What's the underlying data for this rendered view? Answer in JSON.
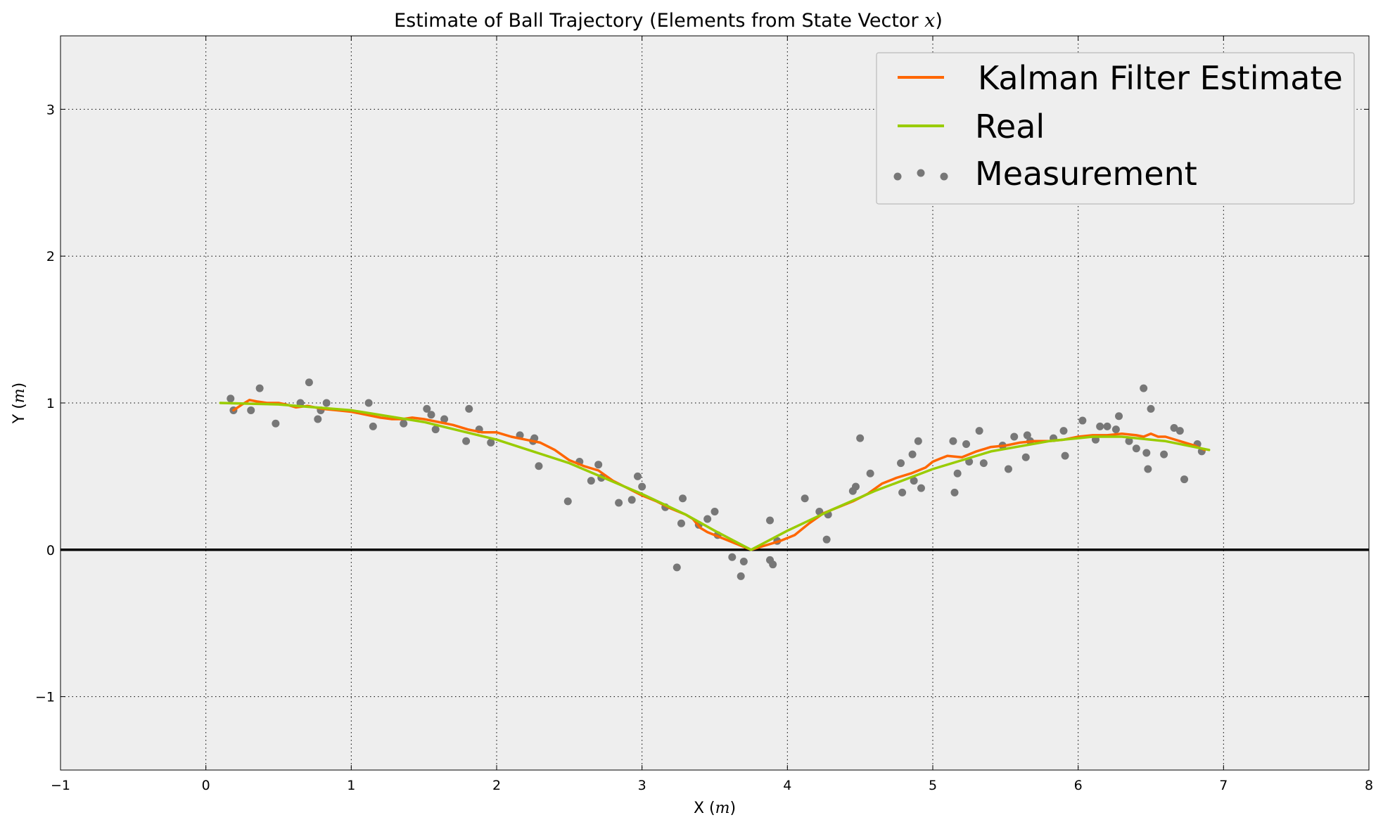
{
  "chart_data": {
    "type": "line",
    "title": "Estimate of Ball Trajectory (Elements from State Vector ",
    "title_math": "x",
    "title_close": ")",
    "xlabel": "X (",
    "xlabel_math": "m",
    "xlabel_close": ")",
    "ylabel": "Y (",
    "ylabel_math": "m",
    "ylabel_close": ")",
    "xlim": [
      -1,
      8
    ],
    "ylim": [
      -1.5,
      3.5
    ],
    "xticks": [
      -1,
      0,
      1,
      2,
      3,
      4,
      5,
      6,
      7,
      8
    ],
    "yticks": [
      -1,
      0,
      1,
      2,
      3
    ],
    "xtick_labels": [
      "−1",
      "0",
      "1",
      "2",
      "3",
      "4",
      "5",
      "6",
      "7",
      "8"
    ],
    "ytick_labels": [
      "−1",
      "0",
      "1",
      "2",
      "3"
    ],
    "grid": true,
    "legend_position": "top-right",
    "ground_line": {
      "y": 0,
      "color": "#000000"
    },
    "colors": {
      "background": "#eeeeee",
      "kalman": "#ff6600",
      "real": "#99cc00",
      "measurement": "#777777"
    },
    "series": [
      {
        "name": "Kalman Filter Estimate",
        "kind": "line",
        "x": [
          0.19,
          0.25,
          0.3,
          0.35,
          0.42,
          0.5,
          0.55,
          0.62,
          0.7,
          0.8,
          0.9,
          1.0,
          1.1,
          1.2,
          1.28,
          1.35,
          1.42,
          1.5,
          1.6,
          1.7,
          1.8,
          1.9,
          2.0,
          2.1,
          2.2,
          2.3,
          2.4,
          2.5,
          2.6,
          2.7,
          2.8,
          2.9,
          3.0,
          3.1,
          3.2,
          3.3,
          3.35,
          3.4,
          3.45,
          3.5,
          3.6,
          3.7,
          3.75,
          3.85,
          3.95,
          4.05,
          4.15,
          4.25,
          4.35,
          4.45,
          4.55,
          4.65,
          4.75,
          4.85,
          4.95,
          5.0,
          5.05,
          5.1,
          5.2,
          5.3,
          5.4,
          5.5,
          5.6,
          5.7,
          5.8,
          5.9,
          6.0,
          6.1,
          6.2,
          6.3,
          6.4,
          6.45,
          6.5,
          6.55,
          6.6,
          6.7,
          6.8,
          6.87
        ],
        "y": [
          0.95,
          0.99,
          1.02,
          1.01,
          1.0,
          1.0,
          0.99,
          0.97,
          0.98,
          0.96,
          0.95,
          0.94,
          0.92,
          0.9,
          0.89,
          0.89,
          0.9,
          0.89,
          0.87,
          0.85,
          0.82,
          0.8,
          0.8,
          0.77,
          0.75,
          0.73,
          0.68,
          0.61,
          0.57,
          0.54,
          0.47,
          0.42,
          0.37,
          0.33,
          0.28,
          0.24,
          0.21,
          0.15,
          0.12,
          0.1,
          0.06,
          0.02,
          0.0,
          0.03,
          0.06,
          0.1,
          0.18,
          0.25,
          0.29,
          0.33,
          0.38,
          0.45,
          0.49,
          0.52,
          0.56,
          0.6,
          0.62,
          0.64,
          0.63,
          0.67,
          0.7,
          0.71,
          0.73,
          0.74,
          0.74,
          0.75,
          0.77,
          0.78,
          0.78,
          0.79,
          0.78,
          0.77,
          0.79,
          0.77,
          0.77,
          0.74,
          0.71,
          0.68
        ]
      },
      {
        "name": "Real",
        "kind": "line",
        "x": [
          0.1,
          0.5,
          1.0,
          1.5,
          2.0,
          2.5,
          3.0,
          3.3,
          3.5,
          3.75,
          4.0,
          4.3,
          4.6,
          5.0,
          5.4,
          5.8,
          6.1,
          6.3,
          6.6,
          6.9
        ],
        "y": [
          1.0,
          0.99,
          0.95,
          0.87,
          0.75,
          0.59,
          0.38,
          0.24,
          0.13,
          0.0,
          0.13,
          0.27,
          0.4,
          0.55,
          0.67,
          0.74,
          0.77,
          0.77,
          0.74,
          0.68
        ]
      },
      {
        "name": "Measurement",
        "kind": "scatter",
        "x": [
          0.17,
          0.19,
          0.31,
          0.37,
          0.48,
          0.65,
          0.71,
          0.77,
          0.79,
          0.83,
          1.12,
          1.15,
          1.36,
          1.52,
          1.55,
          1.58,
          1.64,
          1.79,
          1.81,
          1.88,
          1.96,
          2.16,
          2.25,
          2.26,
          2.29,
          2.49,
          2.57,
          2.65,
          2.7,
          2.72,
          2.84,
          2.93,
          2.97,
          3.0,
          3.16,
          3.24,
          3.27,
          3.28,
          3.39,
          3.45,
          3.5,
          3.52,
          3.62,
          3.68,
          3.7,
          3.88,
          3.88,
          3.9,
          3.93,
          4.12,
          4.22,
          4.27,
          4.28,
          4.45,
          4.47,
          4.5,
          4.57,
          4.78,
          4.79,
          4.86,
          4.87,
          4.9,
          4.92,
          5.14,
          5.15,
          5.17,
          5.23,
          5.25,
          5.32,
          5.35,
          5.48,
          5.52,
          5.56,
          5.64,
          5.65,
          5.67,
          5.83,
          5.9,
          5.91,
          6.03,
          6.12,
          6.15,
          6.2,
          6.26,
          6.28,
          6.35,
          6.4,
          6.45,
          6.47,
          6.48,
          6.5,
          6.59,
          6.66,
          6.7,
          6.73,
          6.82,
          6.85
        ],
        "y": [
          1.03,
          0.95,
          0.95,
          1.1,
          0.86,
          1.0,
          1.14,
          0.89,
          0.95,
          1.0,
          1.0,
          0.84,
          0.86,
          0.96,
          0.92,
          0.82,
          0.89,
          0.74,
          0.96,
          0.82,
          0.73,
          0.78,
          0.74,
          0.76,
          0.57,
          0.33,
          0.6,
          0.47,
          0.58,
          0.49,
          0.32,
          0.34,
          0.5,
          0.43,
          0.29,
          -0.12,
          0.18,
          0.35,
          0.17,
          0.21,
          0.26,
          0.1,
          -0.05,
          -0.18,
          -0.08,
          -0.07,
          0.2,
          -0.1,
          0.06,
          0.35,
          0.26,
          0.07,
          0.24,
          0.4,
          0.43,
          0.76,
          0.52,
          0.59,
          0.39,
          0.65,
          0.47,
          0.74,
          0.42,
          0.74,
          0.39,
          0.52,
          0.72,
          0.6,
          0.81,
          0.59,
          0.71,
          0.55,
          0.77,
          0.63,
          0.78,
          0.74,
          0.76,
          0.81,
          0.64,
          0.88,
          0.75,
          0.84,
          0.84,
          0.82,
          0.91,
          0.74,
          0.69,
          1.1,
          0.66,
          0.55,
          0.96,
          0.65,
          0.83,
          0.81,
          0.48,
          0.72,
          0.67
        ]
      }
    ]
  }
}
